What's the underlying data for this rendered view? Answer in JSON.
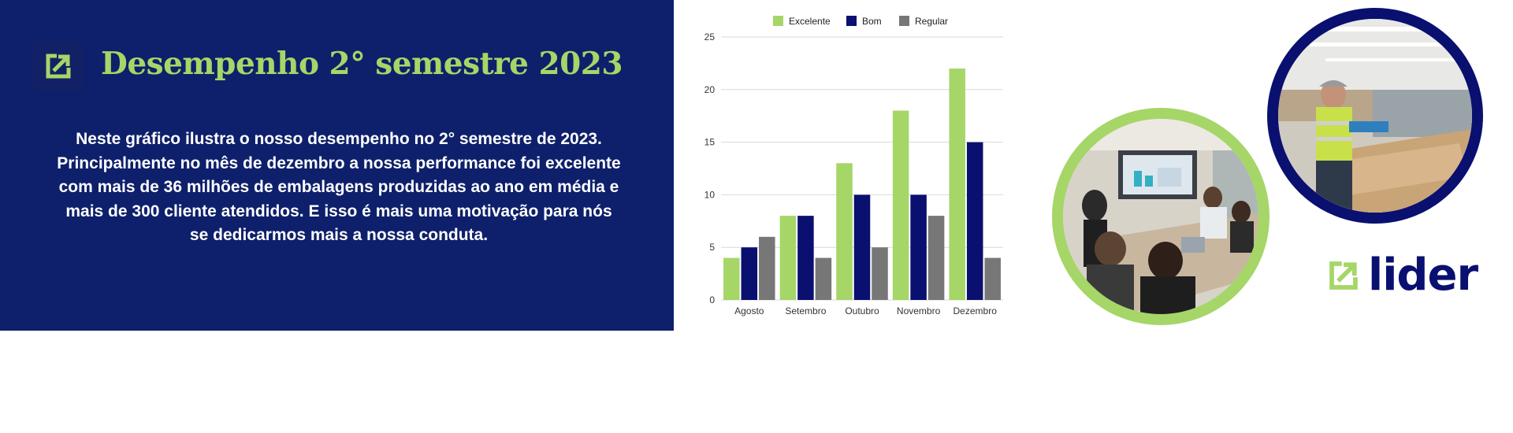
{
  "header": {
    "title": "Desempenho 2° semestre 2023",
    "description": "Neste gráfico ilustra o nosso desempenho no 2° semestre de 2023. Principalmente no mês de dezembro a nossa performance foi excelente com mais de 36 milhões de embalagens produzidas ao ano em  média e mais de 300 cliente atendidos. E isso é mais uma motivação para nós se dedicarmos mais a nossa conduta."
  },
  "brand": {
    "name": "lider"
  },
  "icons": {
    "header_logo": "export-arrow-icon",
    "brand_logo": "export-arrow-icon"
  },
  "colors": {
    "panel_bg": "#0e206b",
    "accent_green": "#a5d667",
    "navy": "#0a1070",
    "gray": "#777777"
  },
  "photos": [
    {
      "name": "meeting-photo",
      "description": "business meeting room"
    },
    {
      "name": "factory-photo",
      "description": "worker in packaging factory"
    }
  ],
  "chart_data": {
    "type": "bar",
    "categories": [
      "Agosto",
      "Setembro",
      "Outubro",
      "Novembro",
      "Dezembro"
    ],
    "series": [
      {
        "name": "Excelente",
        "color": "#a5d667",
        "values": [
          4,
          8,
          13,
          18,
          22
        ]
      },
      {
        "name": "Bom",
        "color": "#0a1070",
        "values": [
          5,
          8,
          10,
          10,
          15
        ]
      },
      {
        "name": "Regular",
        "color": "#777777",
        "values": [
          6,
          4,
          5,
          8,
          4
        ]
      }
    ],
    "yticks": [
      0,
      5,
      10,
      15,
      20,
      25
    ],
    "ylim": [
      0,
      25
    ],
    "grid": true,
    "legend": "top"
  }
}
